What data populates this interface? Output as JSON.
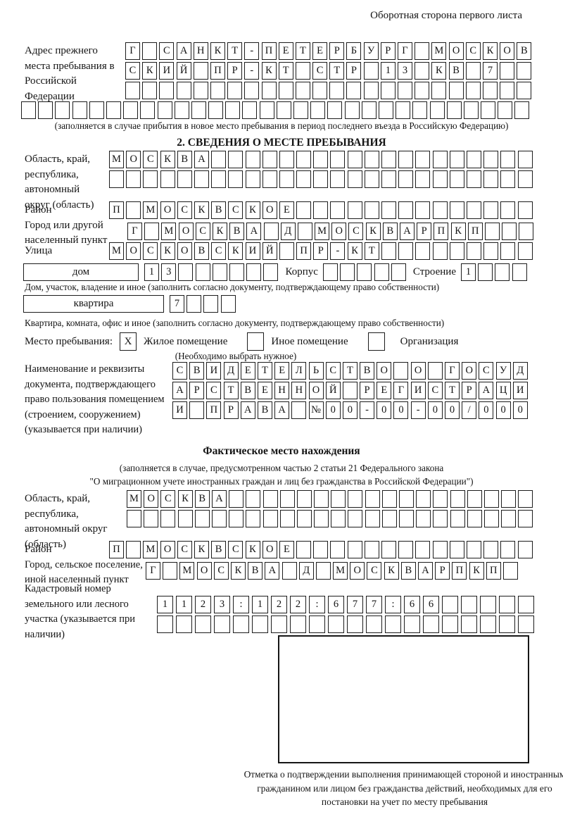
{
  "page": {
    "header_note": "Оборотная сторона первого листа"
  },
  "prev_address": {
    "label": "Адрес прежнего места пребывания в Российской Федерации",
    "rows": [
      "Г САНКТ-ПЕТЕРБУРГ МОСКОВ",
      "СКИЙ ПР-КТ СТР 13 КВ 7  ",
      "                        "
    ],
    "row_full": "                              ",
    "note": "(заполняется в случае прибытия в новое место пребывания в период последнего въезда в Российскую Федерацию)"
  },
  "s2": {
    "title": "2. СВЕДЕНИЯ О МЕСТЕ ПРЕБЫВАНИЯ",
    "region": {
      "label": "Область, край, республика, автономный округ (область)",
      "rows": [
        "МОСКВА                   ",
        "                         "
      ]
    },
    "district": {
      "label": "Район",
      "row": "П МОСКВСКОЕ              "
    },
    "city": {
      "label": "Город или другой населенный пункт",
      "row": "Г МОСКВА Д МОСКВАРПКП   "
    },
    "street": {
      "label": "Улица",
      "row": "МОСКОВСКИЙ ПР-КТ         "
    },
    "house": {
      "box_label": "дом",
      "cells": "13      ",
      "korpus_label": "Корпус",
      "korpus_cells": "     ",
      "stroenie_label": "Строение",
      "stroenie_cells": "1   ",
      "caption": "Дом, участок, владение и иное (заполнить согласно документу, подтверждающему право собственности)"
    },
    "apartment": {
      "box_label": "квартира",
      "cells": "7   ",
      "caption": "Квартира, комната, офис и иное (заполнить согласно документу, подтверждающему право собственности)"
    },
    "stay_type": {
      "label": "Место пребывания:",
      "options": [
        {
          "label": "Жилое помещение",
          "mark": "X"
        },
        {
          "label": "Иное помещение",
          "mark": ""
        },
        {
          "label": "Организация",
          "mark": ""
        }
      ],
      "note": "(Необходимо выбрать нужное)"
    },
    "document": {
      "label": "Наименование и реквизиты документа, подтверждающего право пользования помещением (строением, сооружением) (указывается при наличии)",
      "rows": [
        "СВИДЕТЕЛЬСТВО О ГОСУД",
        "АРСТВЕННОЙ РЕГИСТРАЦИ",
        "И ПРАВА №00-00-00/000"
      ]
    }
  },
  "fact": {
    "title": "Фактическое место нахождения",
    "note_lines": [
      "(заполняется в случае, предусмотренном частью 2 статьи 21 Федерального закона",
      "\"О миграционном учете иностранных граждан и лиц без гражданства в Российской Федерации\")"
    ],
    "region": {
      "label": "Область, край, республика, автономный округ (область)",
      "rows": [
        "МОСКВА                  ",
        "                        "
      ]
    },
    "district": {
      "label": "Район",
      "row": "П МОСКВСКОЕ              "
    },
    "city": {
      "label": "Город, сельское поселение, иной населенный пункт",
      "row": "Г МОСКВА Д МОСКВАРПКП "
    },
    "cadastral": {
      "label": "Кадастровый номер земельного или лесного участка (указывается при наличии)",
      "rows": [
        "1123:122:677:66     ",
        "                    "
      ]
    }
  },
  "stamp": {
    "caption": "Отметка о подтверждении выполнения принимающей стороной и иностранным гражданином или лицом без гражданства действий, необходимых для его постановки на учет по месту пребывания"
  }
}
